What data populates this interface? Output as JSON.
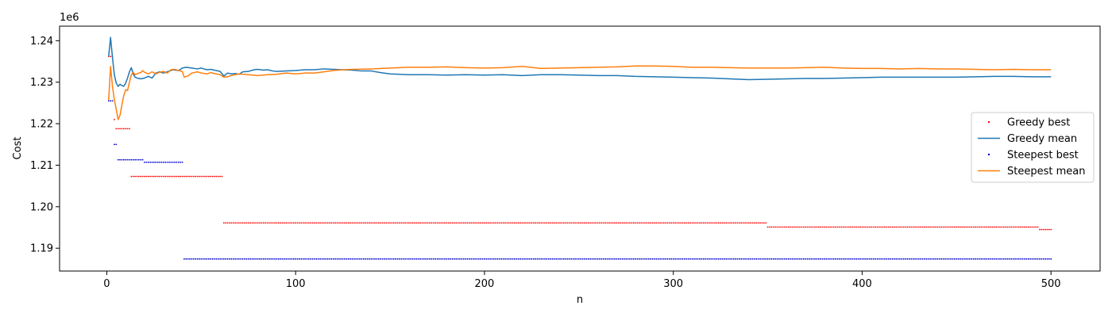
{
  "chart_data": {
    "type": "line",
    "title": "",
    "xlabel": "n",
    "ylabel": "Cost",
    "y_offset_label": "1e6",
    "xlim": [
      -25,
      526
    ],
    "ylim": [
      1.1845,
      1.2435
    ],
    "x_ticks": [
      0,
      100,
      200,
      300,
      400,
      500
    ],
    "x_tick_labels": [
      "0",
      "100",
      "200",
      "300",
      "400",
      "500"
    ],
    "y_ticks": [
      1.19,
      1.2,
      1.21,
      1.22,
      1.23,
      1.24
    ],
    "y_tick_labels": [
      "1.19",
      "1.20",
      "1.21",
      "1.22",
      "1.23",
      "1.24"
    ],
    "grid": false,
    "legend_position": "center-right",
    "series": [
      {
        "name": "Greedy best",
        "kind": "step-markers",
        "color": "#ff0000",
        "steps": [
          [
            1,
            1.2362
          ],
          [
            4,
            1.221
          ],
          [
            5,
            1.2188
          ],
          [
            13,
            1.2073
          ],
          [
            62,
            1.1961
          ],
          [
            350,
            1.1951
          ],
          [
            494,
            1.1945
          ],
          [
            500,
            1.1945
          ]
        ]
      },
      {
        "name": "Greedy mean",
        "kind": "line",
        "color": "#1f77b4",
        "points": [
          [
            1,
            1.2362
          ],
          [
            2,
            1.2408
          ],
          [
            3,
            1.236
          ],
          [
            4,
            1.2318
          ],
          [
            5,
            1.2298
          ],
          [
            6,
            1.229
          ],
          [
            7,
            1.2295
          ],
          [
            8,
            1.2292
          ],
          [
            9,
            1.229
          ],
          [
            10,
            1.2298
          ],
          [
            11,
            1.231
          ],
          [
            12,
            1.2325
          ],
          [
            13,
            1.2335
          ],
          [
            14,
            1.232
          ],
          [
            15,
            1.2312
          ],
          [
            16,
            1.231
          ],
          [
            18,
            1.2308
          ],
          [
            20,
            1.231
          ],
          [
            22,
            1.2314
          ],
          [
            24,
            1.231
          ],
          [
            26,
            1.2322
          ],
          [
            28,
            1.2325
          ],
          [
            30,
            1.2322
          ],
          [
            32,
            1.2325
          ],
          [
            35,
            1.233
          ],
          [
            38,
            1.2328
          ],
          [
            40,
            1.2334
          ],
          [
            42,
            1.2336
          ],
          [
            45,
            1.2334
          ],
          [
            48,
            1.2332
          ],
          [
            50,
            1.2334
          ],
          [
            53,
            1.233
          ],
          [
            55,
            1.2331
          ],
          [
            58,
            1.2328
          ],
          [
            60,
            1.2326
          ],
          [
            62,
            1.2315
          ],
          [
            64,
            1.2322
          ],
          [
            66,
            1.232
          ],
          [
            68,
            1.2321
          ],
          [
            70,
            1.2319
          ],
          [
            72,
            1.2325
          ],
          [
            75,
            1.2326
          ],
          [
            78,
            1.233
          ],
          [
            80,
            1.2331
          ],
          [
            83,
            1.2329
          ],
          [
            85,
            1.233
          ],
          [
            88,
            1.2327
          ],
          [
            90,
            1.2326
          ],
          [
            95,
            1.2327
          ],
          [
            100,
            1.2328
          ],
          [
            105,
            1.233
          ],
          [
            110,
            1.233
          ],
          [
            115,
            1.2332
          ],
          [
            120,
            1.2331
          ],
          [
            125,
            1.233
          ],
          [
            130,
            1.2329
          ],
          [
            135,
            1.2327
          ],
          [
            140,
            1.2327
          ],
          [
            145,
            1.2323
          ],
          [
            150,
            1.232
          ],
          [
            160,
            1.2318
          ],
          [
            170,
            1.2318
          ],
          [
            180,
            1.2317
          ],
          [
            190,
            1.2318
          ],
          [
            200,
            1.2317
          ],
          [
            210,
            1.2318
          ],
          [
            220,
            1.2316
          ],
          [
            230,
            1.2318
          ],
          [
            240,
            1.2318
          ],
          [
            250,
            1.2317
          ],
          [
            260,
            1.2316
          ],
          [
            270,
            1.2316
          ],
          [
            280,
            1.2314
          ],
          [
            290,
            1.2313
          ],
          [
            300,
            1.2312
          ],
          [
            310,
            1.2311
          ],
          [
            320,
            1.231
          ],
          [
            330,
            1.2308
          ],
          [
            340,
            1.2306
          ],
          [
            350,
            1.2307
          ],
          [
            360,
            1.2308
          ],
          [
            370,
            1.2309
          ],
          [
            380,
            1.2309
          ],
          [
            390,
            1.231
          ],
          [
            400,
            1.2311
          ],
          [
            410,
            1.2312
          ],
          [
            420,
            1.2312
          ],
          [
            430,
            1.2312
          ],
          [
            440,
            1.2312
          ],
          [
            450,
            1.2312
          ],
          [
            460,
            1.2313
          ],
          [
            470,
            1.2314
          ],
          [
            480,
            1.2314
          ],
          [
            490,
            1.2313
          ],
          [
            500,
            1.2313
          ]
        ]
      },
      {
        "name": "Steepest best",
        "kind": "step-markers",
        "color": "#0000cc",
        "steps": [
          [
            1,
            1.2255
          ],
          [
            4,
            1.215
          ],
          [
            6,
            1.2113
          ],
          [
            20,
            1.2107
          ],
          [
            41,
            1.1874
          ],
          [
            500,
            1.1874
          ]
        ]
      },
      {
        "name": "Steepest mean",
        "kind": "line",
        "color": "#ff7f0e",
        "points": [
          [
            1,
            1.2257
          ],
          [
            2,
            1.2338
          ],
          [
            3,
            1.229
          ],
          [
            4,
            1.2258
          ],
          [
            5,
            1.2235
          ],
          [
            6,
            1.221
          ],
          [
            7,
            1.222
          ],
          [
            8,
            1.2245
          ],
          [
            9,
            1.2268
          ],
          [
            10,
            1.2282
          ],
          [
            11,
            1.228
          ],
          [
            12,
            1.23
          ],
          [
            13,
            1.2318
          ],
          [
            14,
            1.2324
          ],
          [
            15,
            1.2318
          ],
          [
            16,
            1.232
          ],
          [
            17,
            1.2322
          ],
          [
            18,
            1.2323
          ],
          [
            19,
            1.2328
          ],
          [
            20,
            1.2324
          ],
          [
            22,
            1.232
          ],
          [
            24,
            1.2325
          ],
          [
            26,
            1.232
          ],
          [
            28,
            1.2324
          ],
          [
            30,
            1.2326
          ],
          [
            32,
            1.2322
          ],
          [
            34,
            1.233
          ],
          [
            36,
            1.2331
          ],
          [
            38,
            1.2328
          ],
          [
            40,
            1.2326
          ],
          [
            41,
            1.2312
          ],
          [
            43,
            1.2315
          ],
          [
            45,
            1.2322
          ],
          [
            48,
            1.2325
          ],
          [
            50,
            1.2322
          ],
          [
            53,
            1.232
          ],
          [
            55,
            1.2323
          ],
          [
            58,
            1.232
          ],
          [
            60,
            1.2318
          ],
          [
            62,
            1.2312
          ],
          [
            64,
            1.2313
          ],
          [
            66,
            1.2316
          ],
          [
            68,
            1.2318
          ],
          [
            70,
            1.232
          ],
          [
            75,
            1.2318
          ],
          [
            80,
            1.2316
          ],
          [
            85,
            1.2318
          ],
          [
            90,
            1.2319
          ],
          [
            95,
            1.2322
          ],
          [
            100,
            1.232
          ],
          [
            105,
            1.2322
          ],
          [
            110,
            1.2322
          ],
          [
            115,
            1.2325
          ],
          [
            120,
            1.2328
          ],
          [
            125,
            1.233
          ],
          [
            130,
            1.2331
          ],
          [
            140,
            1.2332
          ],
          [
            150,
            1.2334
          ],
          [
            160,
            1.2336
          ],
          [
            170,
            1.2336
          ],
          [
            180,
            1.2337
          ],
          [
            190,
            1.2335
          ],
          [
            200,
            1.2334
          ],
          [
            210,
            1.2335
          ],
          [
            220,
            1.2338
          ],
          [
            230,
            1.2333
          ],
          [
            240,
            1.2334
          ],
          [
            250,
            1.2335
          ],
          [
            260,
            1.2336
          ],
          [
            270,
            1.2337
          ],
          [
            280,
            1.2339
          ],
          [
            290,
            1.2339
          ],
          [
            300,
            1.2338
          ],
          [
            310,
            1.2336
          ],
          [
            320,
            1.2336
          ],
          [
            330,
            1.2335
          ],
          [
            340,
            1.2334
          ],
          [
            350,
            1.2334
          ],
          [
            360,
            1.2334
          ],
          [
            370,
            1.2335
          ],
          [
            380,
            1.2336
          ],
          [
            390,
            1.2334
          ],
          [
            400,
            1.2333
          ],
          [
            410,
            1.2333
          ],
          [
            420,
            1.2332
          ],
          [
            430,
            1.2333
          ],
          [
            440,
            1.2332
          ],
          [
            450,
            1.2332
          ],
          [
            460,
            1.2331
          ],
          [
            470,
            1.233
          ],
          [
            480,
            1.2331
          ],
          [
            490,
            1.233
          ],
          [
            500,
            1.233
          ]
        ]
      }
    ]
  }
}
